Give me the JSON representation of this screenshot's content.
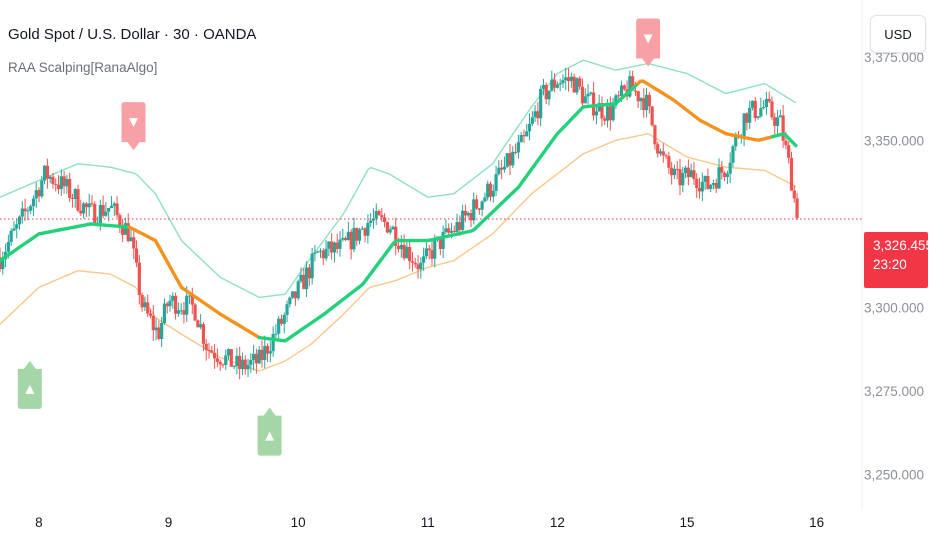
{
  "header": {
    "title": "Gold Spot / U.S. Dollar · 30 · OANDA",
    "indicator": "RAA Scalping[RanaAlgo]"
  },
  "currency_button": "USD",
  "current_price": {
    "price": "3,326.455",
    "countdown": "23:20",
    "value": 3326.455
  },
  "colors": {
    "up_candle": "#26a69a",
    "down_candle": "#ef5350",
    "band_upper": "#8fe0c0",
    "band_lower": "#f7c88a",
    "trend_up": "#22d17a",
    "trend_down": "#f5921e",
    "buy_marker": "#a5d6a7",
    "sell_marker": "#f7a1a7",
    "price_line": "#f23645"
  },
  "chart_data": {
    "type": "candlestick",
    "ylim": [
      3240,
      3392
    ],
    "xlim": [
      -0.3,
      6.35
    ],
    "y_ticks": [
      {
        "value": 3375,
        "label": "3,375.000"
      },
      {
        "value": 3350,
        "label": "3,350.000"
      },
      {
        "value": 3300,
        "label": "3,300.000"
      },
      {
        "value": 3275,
        "label": "3,275.000"
      },
      {
        "value": 3250,
        "label": "3,250.000"
      }
    ],
    "x_ticks": [
      {
        "value": 0,
        "label": "8"
      },
      {
        "value": 1,
        "label": "9"
      },
      {
        "value": 2,
        "label": "10"
      },
      {
        "value": 3,
        "label": "11"
      },
      {
        "value": 4,
        "label": "12"
      },
      {
        "value": 5,
        "label": "15"
      },
      {
        "value": 6,
        "label": "16"
      }
    ],
    "trend_points": [
      [
        -0.3,
        3314
      ],
      [
        0,
        3322
      ],
      [
        0.4,
        3325
      ],
      [
        0.7,
        3324
      ],
      [
        0.9,
        3320
      ],
      [
        1.1,
        3306
      ],
      [
        1.4,
        3298
      ],
      [
        1.7,
        3291
      ],
      [
        1.9,
        3290
      ],
      [
        2.2,
        3298
      ],
      [
        2.5,
        3307
      ],
      [
        2.75,
        3320
      ],
      [
        3.0,
        3320
      ],
      [
        3.35,
        3323
      ],
      [
        3.7,
        3336
      ],
      [
        4.0,
        3352
      ],
      [
        4.2,
        3360
      ],
      [
        4.45,
        3361
      ],
      [
        4.65,
        3368
      ],
      [
        4.9,
        3362
      ],
      [
        5.1,
        3356
      ],
      [
        5.3,
        3352
      ],
      [
        5.55,
        3350
      ],
      [
        5.75,
        3352
      ],
      [
        5.85,
        3348
      ]
    ],
    "trend_down_ranges": [
      [
        0.7,
        1.7
      ],
      [
        4.6,
        5.65
      ]
    ],
    "band_upper": [
      [
        -0.3,
        3333
      ],
      [
        0,
        3338
      ],
      [
        0.3,
        3343
      ],
      [
        0.55,
        3342
      ],
      [
        0.75,
        3340
      ],
      [
        0.9,
        3334
      ],
      [
        1.1,
        3320
      ],
      [
        1.4,
        3309
      ],
      [
        1.7,
        3303
      ],
      [
        1.9,
        3304
      ],
      [
        2.1,
        3315
      ],
      [
        2.35,
        3328
      ],
      [
        2.55,
        3342
      ],
      [
        2.7,
        3340
      ],
      [
        3.0,
        3333
      ],
      [
        3.2,
        3334
      ],
      [
        3.5,
        3343
      ],
      [
        3.8,
        3360
      ],
      [
        4.0,
        3370
      ],
      [
        4.2,
        3374
      ],
      [
        4.45,
        3371
      ],
      [
        4.7,
        3373
      ],
      [
        5.0,
        3370
      ],
      [
        5.3,
        3364
      ],
      [
        5.6,
        3367
      ],
      [
        5.85,
        3361
      ]
    ],
    "band_lower": [
      [
        -0.3,
        3295
      ],
      [
        0,
        3306
      ],
      [
        0.3,
        3311
      ],
      [
        0.55,
        3310
      ],
      [
        0.75,
        3306
      ],
      [
        0.9,
        3297
      ],
      [
        1.1,
        3292
      ],
      [
        1.4,
        3285
      ],
      [
        1.7,
        3281
      ],
      [
        1.9,
        3284
      ],
      [
        2.1,
        3289
      ],
      [
        2.35,
        3298
      ],
      [
        2.55,
        3306
      ],
      [
        2.75,
        3308
      ],
      [
        3.0,
        3312
      ],
      [
        3.2,
        3314
      ],
      [
        3.5,
        3322
      ],
      [
        3.8,
        3334
      ],
      [
        4.0,
        3340
      ],
      [
        4.2,
        3346
      ],
      [
        4.45,
        3350
      ],
      [
        4.7,
        3352
      ],
      [
        5.0,
        3345
      ],
      [
        5.3,
        3342
      ],
      [
        5.6,
        3341
      ],
      [
        5.85,
        3336
      ]
    ],
    "price_anchors": [
      [
        -0.3,
        3315
      ],
      [
        -0.15,
        3325
      ],
      [
        0.05,
        3340
      ],
      [
        0.2,
        3336
      ],
      [
        0.4,
        3328
      ],
      [
        0.55,
        3330
      ],
      [
        0.7,
        3322
      ],
      [
        0.8,
        3300
      ],
      [
        0.92,
        3292
      ],
      [
        1.0,
        3302
      ],
      [
        1.2,
        3300
      ],
      [
        1.3,
        3288
      ],
      [
        1.55,
        3282
      ],
      [
        1.7,
        3284
      ],
      [
        1.85,
        3294
      ],
      [
        2.0,
        3305
      ],
      [
        2.15,
        3316
      ],
      [
        2.35,
        3318
      ],
      [
        2.55,
        3326
      ],
      [
        2.7,
        3325
      ],
      [
        2.82,
        3318
      ],
      [
        2.95,
        3312
      ],
      [
        3.05,
        3318
      ],
      [
        3.25,
        3325
      ],
      [
        3.45,
        3334
      ],
      [
        3.6,
        3342
      ],
      [
        3.75,
        3350
      ],
      [
        3.88,
        3363
      ],
      [
        4.0,
        3368
      ],
      [
        4.12,
        3368
      ],
      [
        4.22,
        3362
      ],
      [
        4.4,
        3358
      ],
      [
        4.55,
        3366
      ],
      [
        4.68,
        3362
      ],
      [
        4.8,
        3345
      ],
      [
        4.92,
        3338
      ],
      [
        5.05,
        3340
      ],
      [
        5.15,
        3336
      ],
      [
        5.3,
        3342
      ],
      [
        5.45,
        3358
      ],
      [
        5.6,
        3360
      ],
      [
        5.72,
        3355
      ],
      [
        5.8,
        3340
      ],
      [
        5.85,
        3326.455
      ]
    ],
    "signals": [
      {
        "type": "sell",
        "x": 0.73,
        "price": 3345
      },
      {
        "type": "buy",
        "x": -0.07,
        "price": 3296
      },
      {
        "type": "buy",
        "x": 1.78,
        "price": 3282
      },
      {
        "type": "sell",
        "x": 4.7,
        "price": 3370
      }
    ]
  }
}
